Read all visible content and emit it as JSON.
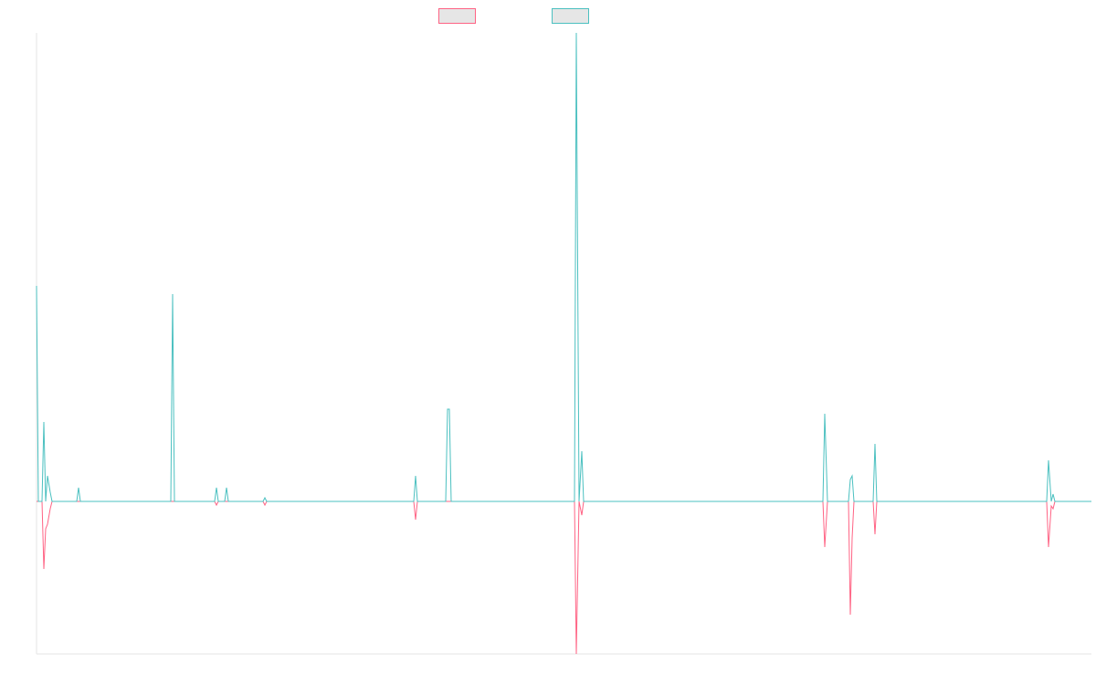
{
  "chart_data": {
    "type": "line",
    "x": [
      0,
      2,
      6,
      8,
      10,
      12,
      15,
      17,
      44,
      46,
      48,
      147,
      149,
      151,
      195,
      197,
      199,
      206,
      208,
      210,
      248,
      250,
      252,
      413,
      415,
      417,
      448,
      450,
      452,
      454,
      589,
      591,
      594,
      597,
      599,
      861,
      863,
      866,
      889,
      891,
      893,
      895,
      916,
      918,
      920,
      1106,
      1108,
      1111,
      1113,
      1115,
      1155
    ],
    "series": [
      {
        "color": "#ff6384",
        "values": [
          0,
          0,
          0,
          -74,
          -30,
          -25,
          -8,
          0,
          0,
          0,
          0,
          0,
          0,
          0,
          0,
          -4,
          0,
          0,
          0,
          0,
          0,
          -4,
          0,
          0,
          -20,
          0,
          0,
          0,
          0,
          0,
          0,
          -167,
          0,
          -15,
          0,
          0,
          -50,
          0,
          0,
          -124,
          -40,
          0,
          0,
          -36,
          0,
          0,
          -50,
          -5,
          -8,
          0,
          0
        ]
      },
      {
        "color": "#4bc0c0",
        "values": [
          236,
          0,
          0,
          87,
          0,
          28,
          10,
          0,
          0,
          15,
          0,
          0,
          227,
          0,
          0,
          15,
          0,
          0,
          15,
          0,
          0,
          4,
          0,
          0,
          28,
          0,
          0,
          101,
          101,
          0,
          0,
          513,
          0,
          55,
          0,
          0,
          96,
          0,
          0,
          24,
          28,
          0,
          0,
          63,
          0,
          0,
          45,
          0,
          8,
          0,
          0
        ]
      }
    ],
    "xlim": [
      0,
      1155
    ],
    "ylim": [
      -167,
      513
    ]
  }
}
